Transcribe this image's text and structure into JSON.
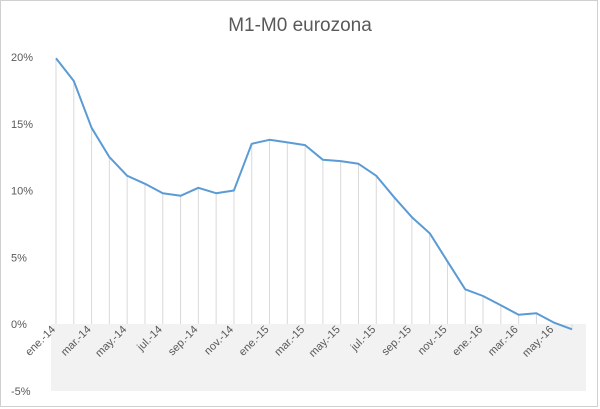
{
  "chart_data": {
    "type": "line",
    "title": "M1-M0 eurozona",
    "xlabel": "",
    "ylabel": "",
    "x": [
      "ene.-14",
      "feb.-14",
      "mar.-14",
      "abr.-14",
      "may.-14",
      "jun.-14",
      "jul.-14",
      "ago.-14",
      "sep.-14",
      "oct.-14",
      "nov.-14",
      "dic.-14",
      "ene.-15",
      "feb.-15",
      "mar.-15",
      "abr.-15",
      "may.-15",
      "jun.-15",
      "jul.-15",
      "ago.-15",
      "sep.-15",
      "oct.-15",
      "nov.-15",
      "dic.-15",
      "ene.-16",
      "feb.-16",
      "mar.-16",
      "abr.-16",
      "may.-16",
      "jun.-16"
    ],
    "x_tick_labels": [
      "ene.-14",
      "mar.-14",
      "may.-14",
      "jul.-14",
      "sep.-14",
      "nov.-14",
      "ene.-15",
      "mar.-15",
      "may.-15",
      "jul.-15",
      "sep.-15",
      "nov.-15",
      "ene.-16",
      "mar.-16",
      "may.-16"
    ],
    "series": [
      {
        "values": [
          0.199,
          0.182,
          0.147,
          0.125,
          0.111,
          0.105,
          0.098,
          0.096,
          0.102,
          0.098,
          0.1,
          0.135,
          0.138,
          0.136,
          0.134,
          0.123,
          0.122,
          0.12,
          0.111,
          0.095,
          0.08,
          0.068,
          0.047,
          0.026,
          0.021,
          0.014,
          0.007,
          0.008,
          0.001,
          -0.004
        ]
      }
    ],
    "y_tick_labels": [
      "-5%",
      "0%",
      "5%",
      "10%",
      "15%",
      "20%"
    ],
    "ylim": [
      -0.05,
      0.2
    ],
    "drop_lines": true,
    "grid": false,
    "legend": "none",
    "line_color": "#5b9bd5",
    "drop_line_color": "#d9d9d9",
    "band_color": "#f2f2f2"
  }
}
